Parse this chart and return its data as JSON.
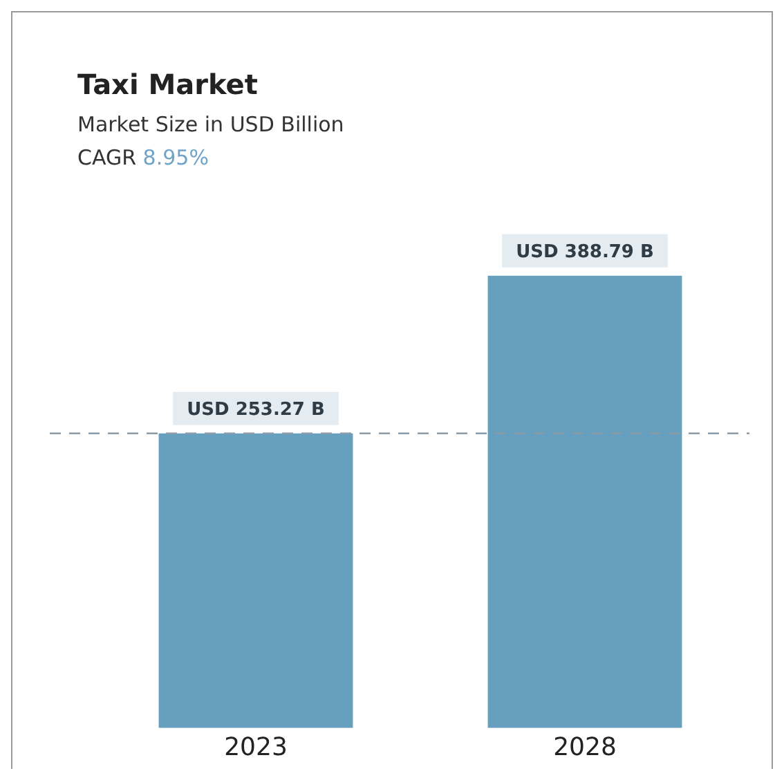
{
  "chart_data": {
    "type": "bar",
    "title": "Taxi Market",
    "subtitle": "Market Size in USD Billion",
    "annotations": [
      "CAGR 8.95%"
    ],
    "categories": [
      "2023",
      "2028"
    ],
    "values": [
      253.27,
      388.79
    ],
    "value_labels": [
      "USD 253.27 B",
      "USD 388.79 B"
    ],
    "color": "#679fbf",
    "ref_lines": [
      {
        "axis": "y",
        "value": 253.27,
        "color": "#8a9aa6",
        "line_style": "dashed"
      }
    ],
    "grid": false,
    "legend": false
  }
}
